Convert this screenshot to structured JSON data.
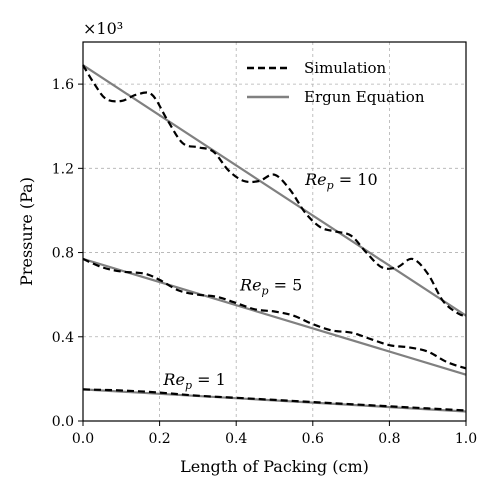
{
  "chart_data": {
    "type": "line",
    "xlabel": "Length of Packing (cm)",
    "ylabel": "Pressure (Pa)",
    "y_scale_label": "×10³",
    "xlim": [
      0.0,
      1.0
    ],
    "ylim": [
      0.0,
      1.8
    ],
    "x_ticks": [
      0.0,
      0.2,
      0.4,
      0.6,
      0.8,
      1.0
    ],
    "x_tick_labels": [
      "0.0",
      "0.2",
      "0.4",
      "0.6",
      "0.8",
      "1.0"
    ],
    "y_ticks": [
      0.0,
      0.4,
      0.8,
      1.2,
      1.6
    ],
    "y_tick_labels": [
      "0.0",
      "0.4",
      "0.8",
      "1.2",
      "1.6"
    ],
    "grid": true,
    "legend": {
      "position": "top-right",
      "entries": [
        {
          "label": "Simulation",
          "style": "dashed",
          "color": "#000000"
        },
        {
          "label": "Ergun Equation",
          "style": "solid",
          "color": "#808080"
        }
      ]
    },
    "annotations": [
      {
        "label": "Re_p = 10",
        "base": "Re",
        "sub": "p",
        "rest": " = 10",
        "x": 0.58,
        "y": 1.12
      },
      {
        "label": "Re_p = 5",
        "base": "Re",
        "sub": "p",
        "rest": " = 5",
        "x": 0.41,
        "y": 0.62
      },
      {
        "label": "Re_p = 1",
        "base": "Re",
        "sub": "p",
        "rest": " = 1",
        "x": 0.21,
        "y": 0.17
      }
    ],
    "series": [
      {
        "name": "Simulation",
        "group": "Re_p = 10",
        "style": "dashed",
        "color": "#000000",
        "x": [
          0.0,
          0.03,
          0.06,
          0.1,
          0.14,
          0.18,
          0.22,
          0.26,
          0.3,
          0.34,
          0.38,
          0.42,
          0.46,
          0.5,
          0.54,
          0.58,
          0.62,
          0.66,
          0.7,
          0.74,
          0.78,
          0.82,
          0.86,
          0.9,
          0.94,
          0.98,
          1.0
        ],
        "y": [
          1.69,
          1.6,
          1.53,
          1.52,
          1.55,
          1.55,
          1.43,
          1.32,
          1.3,
          1.28,
          1.19,
          1.14,
          1.14,
          1.17,
          1.1,
          0.99,
          0.92,
          0.9,
          0.88,
          0.8,
          0.73,
          0.73,
          0.77,
          0.7,
          0.57,
          0.51,
          0.5
        ]
      },
      {
        "name": "Ergun Equation",
        "group": "Re_p = 10",
        "style": "solid",
        "color": "#808080",
        "x": [
          0.0,
          1.0
        ],
        "y": [
          1.69,
          0.5
        ]
      },
      {
        "name": "Simulation",
        "group": "Re_p = 5",
        "style": "dashed",
        "color": "#000000",
        "x": [
          0.0,
          0.05,
          0.1,
          0.16,
          0.2,
          0.25,
          0.3,
          0.35,
          0.4,
          0.45,
          0.5,
          0.55,
          0.6,
          0.65,
          0.7,
          0.75,
          0.8,
          0.85,
          0.9,
          0.95,
          1.0
        ],
        "y": [
          0.77,
          0.73,
          0.71,
          0.7,
          0.67,
          0.62,
          0.6,
          0.59,
          0.56,
          0.53,
          0.52,
          0.5,
          0.46,
          0.43,
          0.42,
          0.39,
          0.36,
          0.35,
          0.33,
          0.28,
          0.25
        ]
      },
      {
        "name": "Ergun Equation",
        "group": "Re_p = 5",
        "style": "solid",
        "color": "#808080",
        "x": [
          0.0,
          1.0
        ],
        "y": [
          0.77,
          0.22
        ]
      },
      {
        "name": "Simulation",
        "group": "Re_p = 1",
        "style": "dashed",
        "color": "#000000",
        "x": [
          0.0,
          0.1,
          0.2,
          0.3,
          0.4,
          0.5,
          0.6,
          0.7,
          0.8,
          0.9,
          1.0
        ],
        "y": [
          0.15,
          0.145,
          0.135,
          0.12,
          0.11,
          0.1,
          0.09,
          0.08,
          0.07,
          0.06,
          0.05
        ]
      },
      {
        "name": "Ergun Equation",
        "group": "Re_p = 1",
        "style": "solid",
        "color": "#808080",
        "x": [
          0.0,
          1.0
        ],
        "y": [
          0.15,
          0.045
        ]
      }
    ]
  }
}
